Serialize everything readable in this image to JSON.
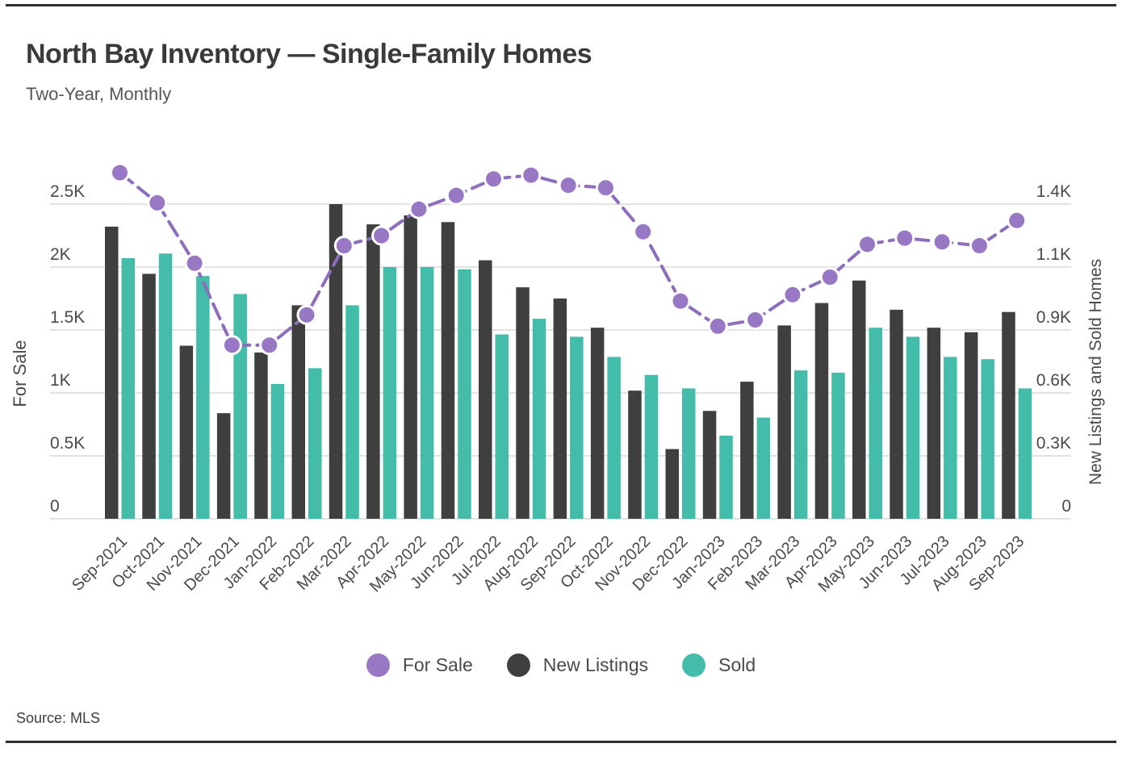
{
  "page": {
    "title": "North Bay Inventory — Single-Family Homes",
    "subtitle": "Two-Year, Monthly",
    "source": "Source: MLS"
  },
  "chart_data": {
    "type": "bar",
    "title": "North Bay Inventory — Single-Family Homes",
    "subtitle": "Two-Year, Monthly",
    "source": "Source: MLS",
    "grid": true,
    "legend_position": "bottom",
    "categories": [
      "Sep-2021",
      "Oct-2021",
      "Nov-2021",
      "Dec-2021",
      "Jan-2022",
      "Feb-2022",
      "Mar-2022",
      "Apr-2022",
      "May-2022",
      "Jun-2022",
      "Jul-2022",
      "Aug-2022",
      "Sep-2022",
      "Oct-2022",
      "Nov-2022",
      "Dec-2022",
      "Jan-2023",
      "Feb-2023",
      "Mar-2023",
      "Apr-2023",
      "May-2023",
      "Jun-2023",
      "Jul-2023",
      "Aug-2023",
      "Sep-2023"
    ],
    "series": [
      {
        "name": "For Sale",
        "type": "line",
        "axis": "left",
        "color": "#9878C5",
        "values": [
          2750,
          2510,
          2030,
          1380,
          1380,
          1620,
          2170,
          2250,
          2460,
          2570,
          2700,
          2730,
          2650,
          2630,
          2280,
          1730,
          1530,
          1580,
          1780,
          1920,
          2180,
          2230,
          2200,
          2170,
          2370
        ]
      },
      {
        "name": "New Listings",
        "type": "bar",
        "axis": "right",
        "color": "#3F3F3F",
        "values": [
          1300,
          1090,
          770,
          470,
          740,
          950,
          1400,
          1310,
          1350,
          1320,
          1150,
          1030,
          980,
          850,
          570,
          310,
          480,
          610,
          860,
          960,
          1060,
          930,
          850,
          830,
          920
        ]
      },
      {
        "name": "Sold",
        "type": "bar",
        "axis": "right",
        "color": "#43BCA9",
        "values": [
          1160,
          1180,
          1080,
          1000,
          600,
          670,
          950,
          1120,
          1120,
          1110,
          820,
          890,
          810,
          720,
          640,
          580,
          370,
          450,
          660,
          650,
          850,
          810,
          720,
          710,
          580
        ]
      }
    ],
    "left_axis": {
      "label": "For Sale",
      "min": 0,
      "max": 2500,
      "ticks": [
        "0",
        "0.5K",
        "1K",
        "1.5K",
        "2K",
        "2.5K"
      ]
    },
    "right_axis": {
      "label": "New Listings and Sold Homes",
      "min": 0,
      "max": 1400,
      "ticks": [
        "0",
        "0.3K",
        "0.6K",
        "0.9K",
        "1.1K",
        "1.4K"
      ]
    },
    "colors": {
      "line_stroke": "#8D6DBD",
      "marker_fill": "#9878C5",
      "new_listings_bar": "#3F3F3F",
      "sold_bar": "#43BCA9",
      "gridline": "#D9D9D9",
      "axis_text": "#4A4A4A",
      "title_text": "#3A3A3A",
      "rule": "#2E2E2E"
    }
  }
}
